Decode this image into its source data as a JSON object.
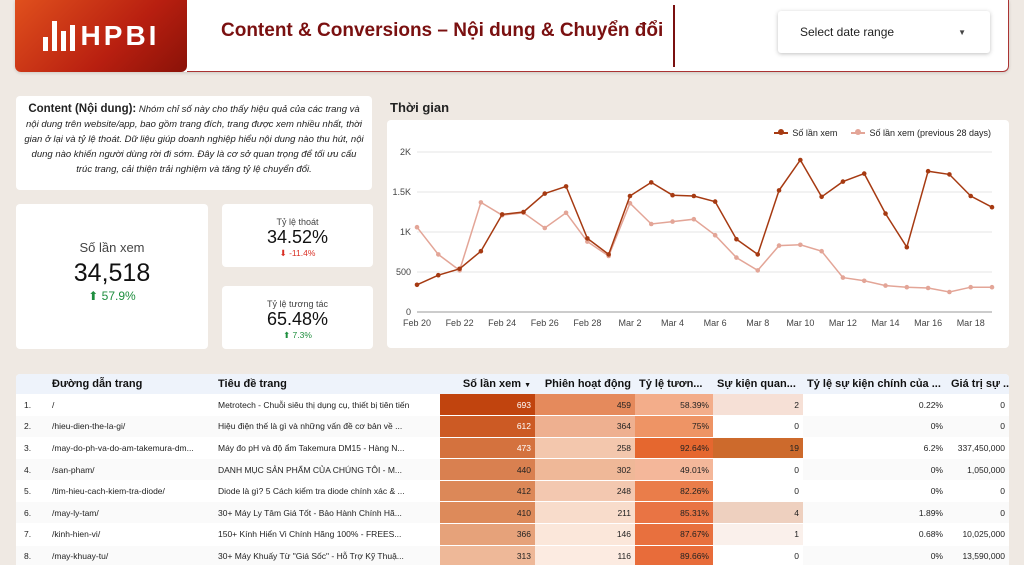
{
  "header": {
    "logo_text": "HPBI",
    "title": "Content & Conversions – Nội dung & Chuyển đổi",
    "date_range_label": "Select date range"
  },
  "description": {
    "heading": "Content (Nội dung):",
    "body": "Nhóm chỉ số này cho thấy hiệu quả của các trang và nội dung trên website/app, bao gồm trang đích, trang được xem nhiều nhất, thời gian ở lại và tỷ lệ thoát. Dữ liệu giúp doanh nghiệp hiểu nội dung nào thu hút, nội dung nào khiến người dùng rời đi sớm. Đây là cơ sở quan trọng để tối ưu cấu trúc trang, cải thiện trải nghiệm và tăng tỷ lệ chuyển đổi."
  },
  "kpis": {
    "views": {
      "label": "Số lần xem",
      "value": "34,518",
      "delta": "57.9%"
    },
    "bounce": {
      "label": "Tỷ lệ thoát",
      "value": "34.52%",
      "delta": "-11.4%"
    },
    "engagement": {
      "label": "Tỷ lệ tương tác",
      "value": "65.48%",
      "delta": "7.3%"
    }
  },
  "chart": {
    "heading": "Thời gian"
  },
  "chart_data": {
    "type": "line",
    "x": [
      "Feb 20",
      "Feb 21",
      "Feb 22",
      "Feb 23",
      "Feb 24",
      "Feb 25",
      "Feb 26",
      "Feb 27",
      "Feb 28",
      "Mar 1",
      "Mar 2",
      "Mar 3",
      "Mar 4",
      "Mar 5",
      "Mar 6",
      "Mar 7",
      "Mar 8",
      "Mar 9",
      "Mar 10",
      "Mar 11",
      "Mar 12",
      "Mar 13",
      "Mar 14",
      "Mar 15",
      "Mar 16",
      "Mar 17",
      "Mar 18",
      "Mar 19"
    ],
    "x_tick_labels": [
      "Feb 20",
      "Feb 22",
      "Feb 24",
      "Feb 26",
      "Feb 28",
      "Mar 2",
      "Mar 4",
      "Mar 6",
      "Mar 8",
      "Mar 10",
      "Mar 12",
      "Mar 14",
      "Mar 16",
      "Mar 18"
    ],
    "y_tick_labels": [
      "0",
      "500",
      "1K",
      "1.5K",
      "2K"
    ],
    "ylim": [
      0,
      2000
    ],
    "grid": true,
    "legend_position": "top-right",
    "series": [
      {
        "name": "Số lần xem",
        "color": "#a63a12",
        "values": [
          340,
          460,
          540,
          760,
          1220,
          1250,
          1480,
          1570,
          920,
          720,
          1450,
          1620,
          1460,
          1450,
          1380,
          910,
          720,
          1520,
          1900,
          1440,
          1630,
          1730,
          1230,
          810,
          1760,
          1720,
          1450,
          1310
        ]
      },
      {
        "name": "Số lần xem (previous 28 days)",
        "color": "#e3a597",
        "values": [
          1060,
          720,
          520,
          1370,
          1210,
          1240,
          1050,
          1240,
          880,
          700,
          1360,
          1100,
          1130,
          1160,
          960,
          680,
          520,
          830,
          840,
          760,
          430,
          390,
          330,
          310,
          300,
          250,
          310,
          310
        ]
      }
    ]
  },
  "table": {
    "columns": [
      "Đường dẫn trang",
      "Tiêu đề trang",
      "Số lần xem",
      "Phiên hoạt động",
      "Tỷ lệ tươn...",
      "Sự kiện quan...",
      "Tỷ lệ sự kiện chính của ...",
      "Giá trị sự ..."
    ],
    "sort_indicator": "▼",
    "rows": [
      {
        "idx": "1.",
        "path": "/",
        "title": "Metrotech - Chuỗi siêu thị dụng cụ, thiết bị tiên tiến",
        "views": "693",
        "sessions": "459",
        "rate": "58.39%",
        "events": "2",
        "event_rate": "0.22%",
        "value": "0"
      },
      {
        "idx": "2.",
        "path": "/hieu-dien-the-la-gi/",
        "title": "Hiệu điện thế là gì và những vấn đề cơ bản về ...",
        "views": "612",
        "sessions": "364",
        "rate": "75%",
        "events": "0",
        "event_rate": "0%",
        "value": "0"
      },
      {
        "idx": "3.",
        "path": "/may-do-ph-va-do-am-takemura-dm...",
        "title": "Máy đo pH và độ ẩm Takemura DM15 - Hàng N...",
        "views": "473",
        "sessions": "258",
        "rate": "92.64%",
        "events": "19",
        "event_rate": "6.2%",
        "value": "337,450,000"
      },
      {
        "idx": "4.",
        "path": "/san-pham/",
        "title": "DANH MỤC SẢN PHẨM CỦA CHÚNG TÔI - M...",
        "views": "440",
        "sessions": "302",
        "rate": "49.01%",
        "events": "0",
        "event_rate": "0%",
        "value": "1,050,000"
      },
      {
        "idx": "5.",
        "path": "/tim-hieu-cach-kiem-tra-diode/",
        "title": "Diode là gì? 5 Cách kiểm tra diode chính xác & ...",
        "views": "412",
        "sessions": "248",
        "rate": "82.26%",
        "events": "0",
        "event_rate": "0%",
        "value": "0"
      },
      {
        "idx": "6.",
        "path": "/may-ly-tam/",
        "title": "30+ Máy Ly Tâm Giá Tốt - Bảo Hành Chính Hã...",
        "views": "410",
        "sessions": "211",
        "rate": "85.31%",
        "events": "4",
        "event_rate": "1.89%",
        "value": "0"
      },
      {
        "idx": "7.",
        "path": "/kinh-hien-vi/",
        "title": "150+ Kính Hiển Vi Chính Hãng 100% - FREES...",
        "views": "366",
        "sessions": "146",
        "rate": "87.67%",
        "events": "1",
        "event_rate": "0.68%",
        "value": "10,025,000"
      },
      {
        "idx": "8.",
        "path": "/may-khuay-tu/",
        "title": "30+ Máy Khuấy Từ \"Giá Sốc\" - Hỗ Trợ Kỹ Thuậ...",
        "views": "313",
        "sessions": "116",
        "rate": "89.66%",
        "events": "0",
        "event_rate": "0%",
        "value": "13,590,000"
      }
    ]
  },
  "heatmap_colors": {
    "views": [
      "#c1440e",
      "#cc5a24",
      "#d4723e",
      "#d98050",
      "#dc8858",
      "#dd8a5a",
      "#e6a27a",
      "#eeb898"
    ],
    "sessions": [
      "#e58a5c",
      "#eeb090",
      "#f3c7ad",
      "#efb898",
      "#f3c8b0",
      "#f8dccb",
      "#fbe7da",
      "#fcebe1"
    ],
    "rate": [
      "#f3ad8a",
      "#ee9465",
      "#e5672f",
      "#f4b79a",
      "#ea7d4a",
      "#e97444",
      "#e8703e",
      "#e86c3a"
    ],
    "events": [
      "#f6e0d6",
      "#ffffff",
      "#cd6a2c",
      "#ffffff",
      "#ffffff",
      "#eed0bf",
      "#faf0eb",
      "#ffffff"
    ]
  }
}
